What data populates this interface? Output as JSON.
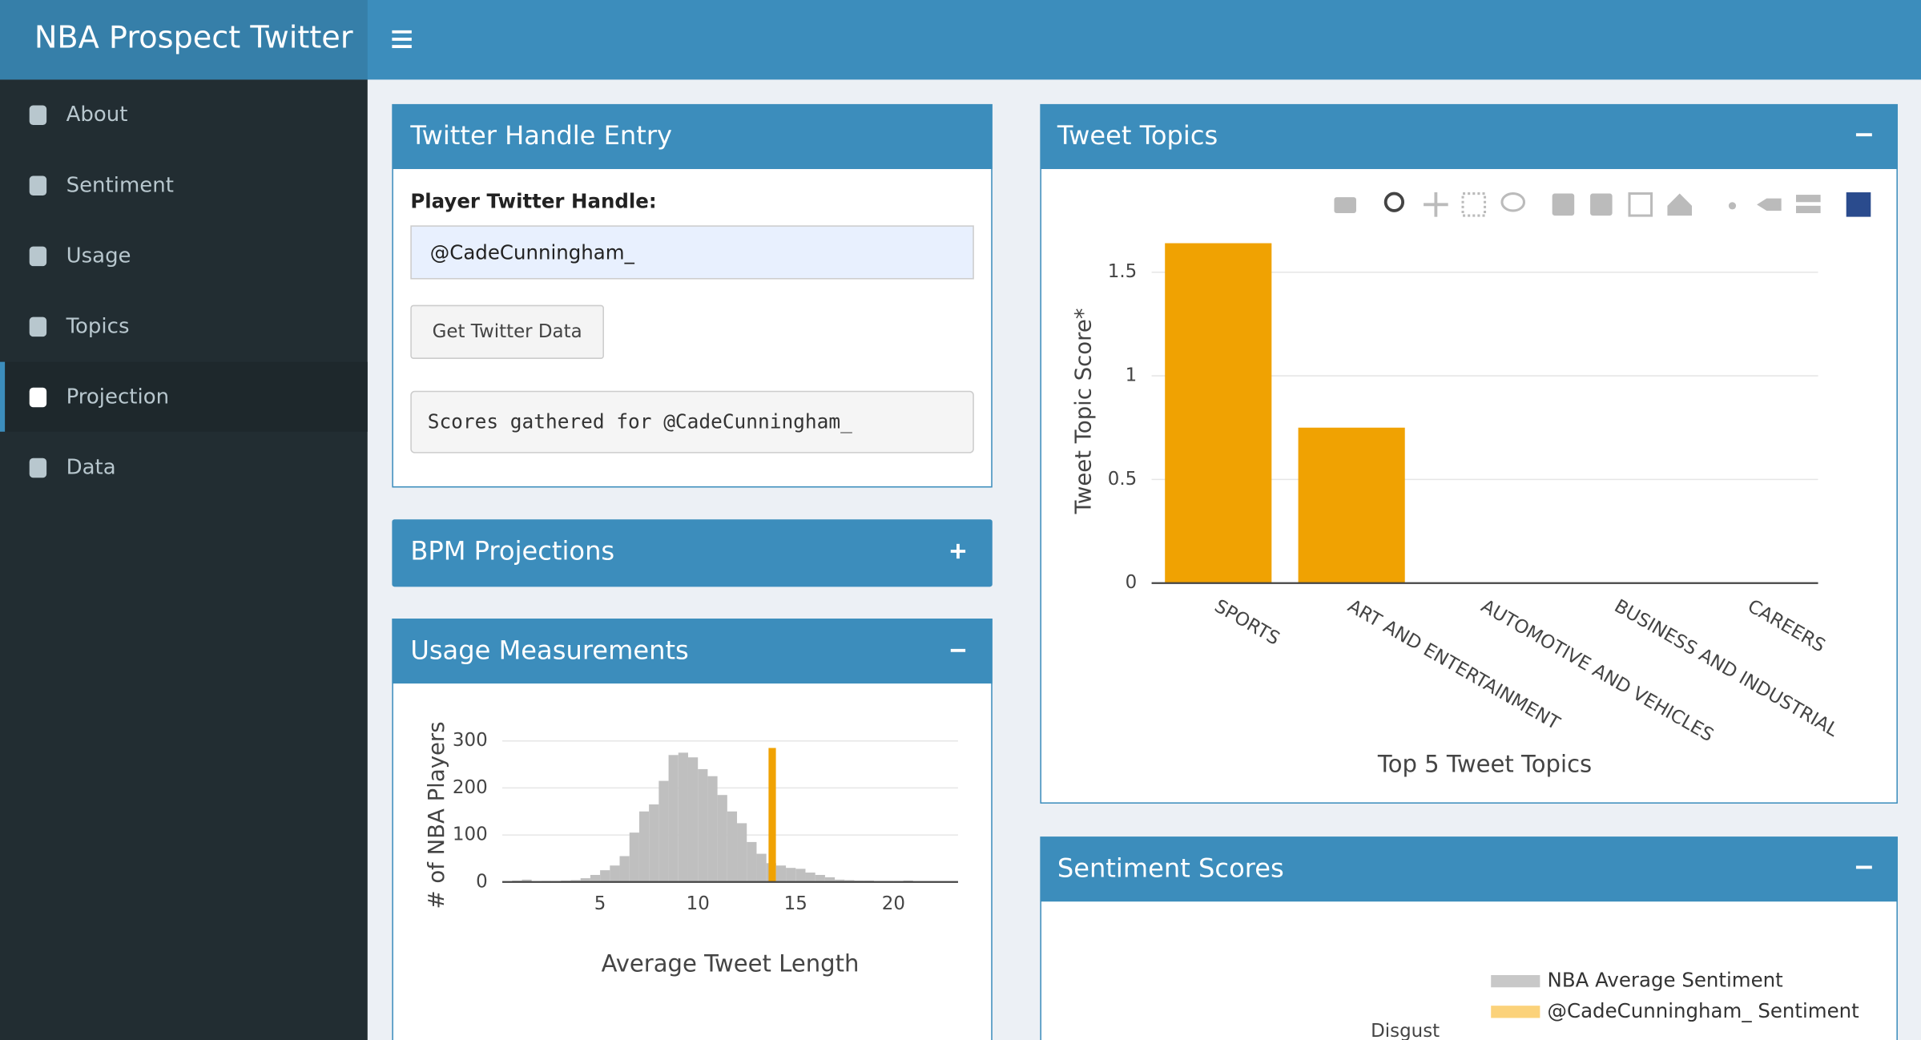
{
  "header": {
    "title": "NBA Prospect Twitter"
  },
  "sidebar": {
    "items": [
      "About",
      "Sentiment",
      "Usage",
      "Topics",
      "Projection",
      "Data"
    ],
    "active": 4
  },
  "panels": {
    "handle_entry": {
      "title": "Twitter Handle Entry",
      "label": "Player Twitter Handle:",
      "input": "@CadeCunningham_",
      "button": "Get Twitter Data",
      "output": "Scores gathered for @CadeCunningham_"
    },
    "bpm": {
      "title": "BPM Projections"
    },
    "usage": {
      "title": "Usage Measurements"
    },
    "topics": {
      "title": "Tweet Topics"
    },
    "sentiment": {
      "title": "Sentiment Scores",
      "legend": [
        {
          "name": "NBA Average Sentiment",
          "color": "#c8c8c8"
        },
        {
          "name": "@CadeCunningham_ Sentiment",
          "color": "#fbd27a"
        }
      ],
      "category": "Disgust"
    }
  },
  "chart_data": [
    {
      "type": "bar",
      "xlabel": "Top 5 Tweet Topics",
      "ylabel": "Tweet Topic Score*",
      "categories": [
        "SPORTS",
        "ART AND ENTERTAINMENT",
        "AUTOMOTIVE AND VEHICLES",
        "BUSINESS AND INDUSTRIAL",
        "CAREERS"
      ],
      "values": [
        1.64,
        0.75,
        0,
        0,
        0
      ],
      "color": "#f0a202",
      "ylim": [
        0,
        1.72
      ],
      "yticks": [
        0,
        0.5,
        1,
        1.5
      ],
      "grid": true
    },
    {
      "type": "histogram",
      "xlabel": "Average Tweet Length",
      "ylabel": "# of NBA Players",
      "bins": [
        0.5,
        1,
        1.5,
        2,
        2.5,
        3,
        3.5,
        4,
        4.5,
        5,
        5.5,
        6,
        6.5,
        7,
        7.5,
        8,
        8.5,
        9,
        9.5,
        10,
        10.5,
        11,
        11.5,
        12,
        12.5,
        13,
        13.5,
        14,
        14.5,
        15,
        15.5,
        16,
        16.5,
        17,
        17.5,
        18,
        18.5,
        19,
        19.5,
        20,
        20.5,
        21,
        21.5,
        22,
        22.5,
        23
      ],
      "values": [
        3,
        5,
        1,
        2,
        2,
        3,
        4,
        8,
        15,
        25,
        35,
        55,
        105,
        150,
        165,
        215,
        270,
        275,
        265,
        240,
        225,
        185,
        150,
        125,
        85,
        60,
        40,
        35,
        30,
        28,
        20,
        15,
        10,
        5,
        4,
        3,
        3,
        2,
        2,
        2,
        3,
        1,
        1,
        1,
        1
      ],
      "color": "#bfbfbf",
      "marker": {
        "x": 13.8,
        "value": 285
      },
      "marker_color": "#f0a202",
      "xlim": [
        0,
        23.3
      ],
      "ylim": [
        0,
        310
      ],
      "xticks": [
        5,
        10,
        15,
        20
      ],
      "yticks": [
        0,
        100,
        200,
        300
      ],
      "grid": true
    }
  ]
}
